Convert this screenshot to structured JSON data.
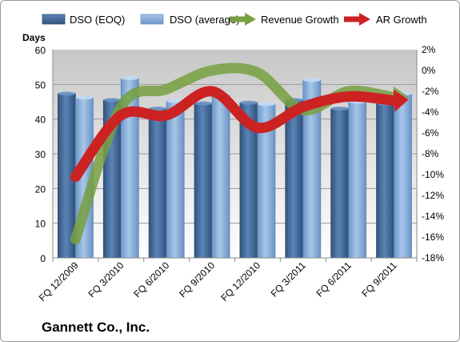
{
  "chart_data": {
    "type": "bar",
    "title": "Gannett Co., Inc.",
    "ylabel": "Days",
    "categories": [
      "FQ 12/2009",
      "FQ 3/2010",
      "FQ 6/2010",
      "FQ 9/2010",
      "FQ 12/2010",
      "FQ 3/2011",
      "FQ 6/2011",
      "FQ 9/2011"
    ],
    "ylim": [
      0,
      60
    ],
    "yticks": [
      "0",
      "10",
      "20",
      "30",
      "40",
      "50",
      "60"
    ],
    "y2lim": [
      -18,
      2
    ],
    "y2ticks": [
      "2%",
      "0%",
      "-2%",
      "-4%",
      "-6%",
      "-8%",
      "-10%",
      "-12%",
      "-14%",
      "-16%",
      "-18%"
    ],
    "legend_position": "top",
    "grid": true,
    "series": [
      {
        "name": "DSO (EOQ)",
        "type": "bar",
        "axis": "left",
        "color": "#4a6e9c",
        "values": [
          47.3,
          45.5,
          43.0,
          44.5,
          44.7,
          45.5,
          43.0,
          44.5
        ]
      },
      {
        "name": "DSO (average)",
        "type": "bar",
        "axis": "left",
        "color": "#8db4e2",
        "values": [
          46.2,
          51.8,
          45.2,
          47.0,
          44.3,
          51.3,
          45.0,
          47.3
        ]
      },
      {
        "name": "Revenue Growth",
        "type": "line",
        "axis": "right",
        "color": "#77a040",
        "values": [
          -16.2,
          -3.5,
          -1.8,
          0.0,
          -0.2,
          -3.8,
          -2.0,
          -2.6
        ]
      },
      {
        "name": "AR Growth",
        "type": "line",
        "axis": "right",
        "color": "#cc2222",
        "values": [
          -10.2,
          -4.3,
          -4.3,
          -2.0,
          -5.5,
          -3.5,
          -2.5,
          -2.9
        ]
      }
    ]
  }
}
